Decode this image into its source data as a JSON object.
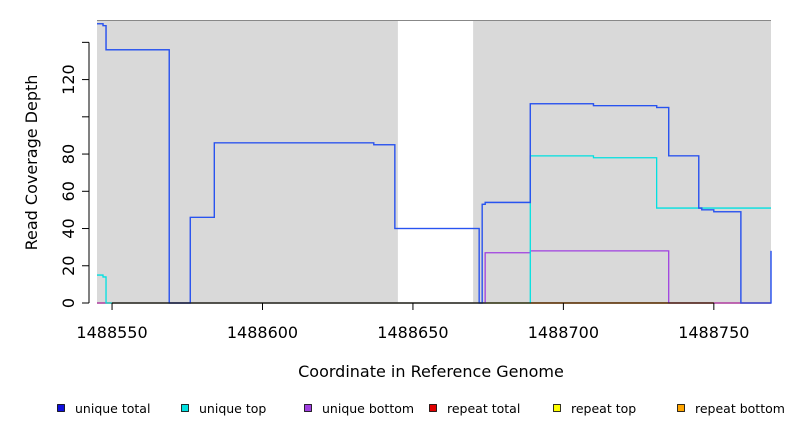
{
  "chart_data": {
    "type": "line",
    "title": "",
    "xlabel": "Coordinate in Reference Genome",
    "ylabel": "Read Coverage Depth",
    "xlim": [
      1488545,
      1488769
    ],
    "ylim": [
      0,
      152
    ],
    "x_ticks": [
      1488550,
      1488600,
      1488650,
      1488700,
      1488750
    ],
    "x_tick_labels": [
      "1488550",
      "1488600",
      "1488650",
      "1488700",
      "1488750"
    ],
    "y_ticks": [
      0,
      20,
      40,
      60,
      80,
      100,
      120,
      140
    ],
    "y_tick_labels": [
      "0",
      "20",
      "40",
      "60",
      "80",
      "",
      "120",
      ""
    ],
    "shaded_regions": [
      {
        "from": 1488545,
        "to": 1488645,
        "color": "#d9d9d9"
      },
      {
        "from": 1488670,
        "to": 1488769,
        "color": "#d9d9d9"
      }
    ],
    "series": [
      {
        "name": "unique total",
        "color": "#1010dd",
        "x": [
          1488545,
          1488547,
          1488548,
          1488569,
          1488576,
          1488584,
          1488631,
          1488637,
          1488644,
          1488672,
          1488673,
          1488674,
          1488689,
          1488710,
          1488729,
          1488731,
          1488735,
          1488745,
          1488746,
          1488750,
          1488759,
          1488769
        ],
        "y": [
          150,
          149,
          136,
          0,
          46,
          86,
          86,
          85,
          40,
          0,
          53,
          54,
          107,
          106,
          106,
          105,
          79,
          51,
          50,
          49,
          0,
          28
        ]
      },
      {
        "name": "unique top",
        "color": "#00e0e0",
        "x": [
          1488545,
          1488547,
          1488548,
          1488689,
          1488710,
          1488730,
          1488731,
          1488769
        ],
        "y": [
          15,
          14,
          0,
          79,
          78,
          78,
          51,
          51
        ]
      },
      {
        "name": "unique bottom",
        "color": "#a040e0",
        "x": [
          1488545,
          1488673,
          1488674,
          1488689,
          1488735,
          1488769
        ],
        "y": [
          0,
          0,
          27,
          28,
          0,
          0
        ]
      },
      {
        "name": "repeat total",
        "color": "#e00000",
        "x": [
          1488545,
          1488769
        ],
        "y": [
          0,
          0
        ]
      },
      {
        "name": "repeat top",
        "color": "#ffff00",
        "x": [
          1488545,
          1488769
        ],
        "y": [
          0,
          0
        ]
      },
      {
        "name": "repeat bottom",
        "color": "#ffa500",
        "x": [
          1488545,
          1488769
        ],
        "y": [
          0,
          0
        ]
      }
    ],
    "legend": {
      "placement": "bottom",
      "entries": [
        {
          "label": "unique total",
          "color": "#1010dd"
        },
        {
          "label": "unique top",
          "color": "#00e0e0"
        },
        {
          "label": "unique bottom",
          "color": "#a040e0"
        },
        {
          "label": "repeat total",
          "color": "#e00000"
        },
        {
          "label": "repeat top",
          "color": "#ffff00"
        },
        {
          "label": "repeat bottom",
          "color": "#ffa500"
        }
      ]
    },
    "grid": false
  }
}
